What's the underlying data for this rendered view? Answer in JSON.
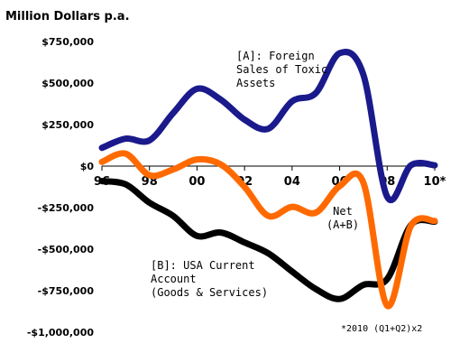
{
  "chart_data": {
    "type": "line",
    "units_label": "Million Dollars p.a.",
    "xlabel": "",
    "ylabel": "",
    "xlim": [
      1996,
      2010
    ],
    "ylim": [
      -1000000,
      750000
    ],
    "grid": false,
    "y_ticks": [
      750000,
      500000,
      250000,
      0,
      -250000,
      -500000,
      -750000,
      -1000000
    ],
    "y_tick_labels": [
      "$750,000",
      "$500,000",
      "$250,000",
      "$0",
      "-$250,000",
      "-$500,000",
      "-$750,000",
      "-$1,000,000"
    ],
    "x_ticks": [
      1996,
      1998,
      2000,
      2002,
      2004,
      2006,
      2008,
      2010
    ],
    "x_tick_labels": [
      "96",
      "98",
      "00",
      "02",
      "04",
      "06",
      "08",
      "10*"
    ],
    "series": [
      {
        "name": "[A]: Foreign Sales of Toxic Assets",
        "label_lines": [
          "[A]: Foreign",
          "Sales of Toxic",
          "Assets"
        ],
        "color": "#1a1a8c",
        "x": [
          1996,
          1997,
          1998,
          1999,
          2000,
          2001,
          2002,
          2003,
          2004,
          2005,
          2006,
          2007,
          2008,
          2009,
          2010
        ],
        "y": [
          110000,
          165000,
          155000,
          320000,
          465000,
          400000,
          280000,
          225000,
          390000,
          440000,
          680000,
          550000,
          -185000,
          5000,
          5000
        ]
      },
      {
        "name": "Net (A+B)",
        "label_lines": [
          "Net",
          "(A+B)"
        ],
        "color": "#ff6a00",
        "x": [
          1996,
          1997,
          1998,
          1999,
          2000,
          2001,
          2002,
          2003,
          2004,
          2005,
          2006,
          2007,
          2008,
          2009,
          2010
        ],
        "y": [
          25000,
          75000,
          -55000,
          -20000,
          40000,
          10000,
          -125000,
          -300000,
          -245000,
          -280000,
          -120000,
          -100000,
          -840000,
          -360000,
          -330000
        ]
      },
      {
        "name": "[B]: USA Current Account (Goods & Services)",
        "label_lines": [
          "[B]: USA Current",
          "Account",
          "(Goods & Services)"
        ],
        "color": "#000000",
        "x": [
          1996,
          1997,
          1998,
          1999,
          2000,
          2001,
          2002,
          2003,
          2004,
          2005,
          2006,
          2007,
          2008,
          2009,
          2010
        ],
        "y": [
          -90000,
          -110000,
          -220000,
          -300000,
          -420000,
          -400000,
          -460000,
          -525000,
          -635000,
          -740000,
          -800000,
          -715000,
          -680000,
          -355000,
          -335000
        ]
      }
    ],
    "footnote": "*2010 (Q1+Q2)x2"
  }
}
